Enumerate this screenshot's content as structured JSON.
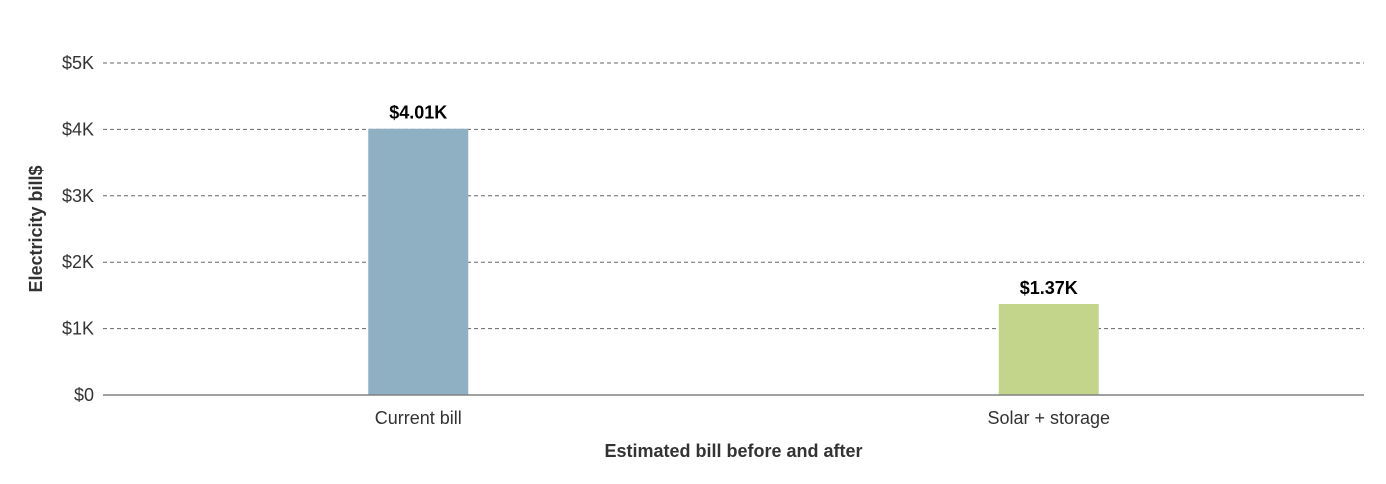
{
  "chart_data": {
    "type": "bar",
    "categories": [
      "Current bill",
      "Solar + storage"
    ],
    "values": [
      4010,
      1370
    ],
    "data_labels": [
      "$4.01K",
      "$1.37K"
    ],
    "colors": [
      "#8fb0c3",
      "#c2d58b"
    ],
    "xlabel": "Estimated bill before and after",
    "ylabel": "Electricity bill$",
    "ylim": [
      0,
      5000
    ],
    "yticks": [
      0,
      1000,
      2000,
      3000,
      4000,
      5000
    ],
    "ytick_labels": [
      "$0",
      "$1K",
      "$2K",
      "$3K",
      "$4K",
      "$5K"
    ],
    "grid": true,
    "legend": "none"
  }
}
